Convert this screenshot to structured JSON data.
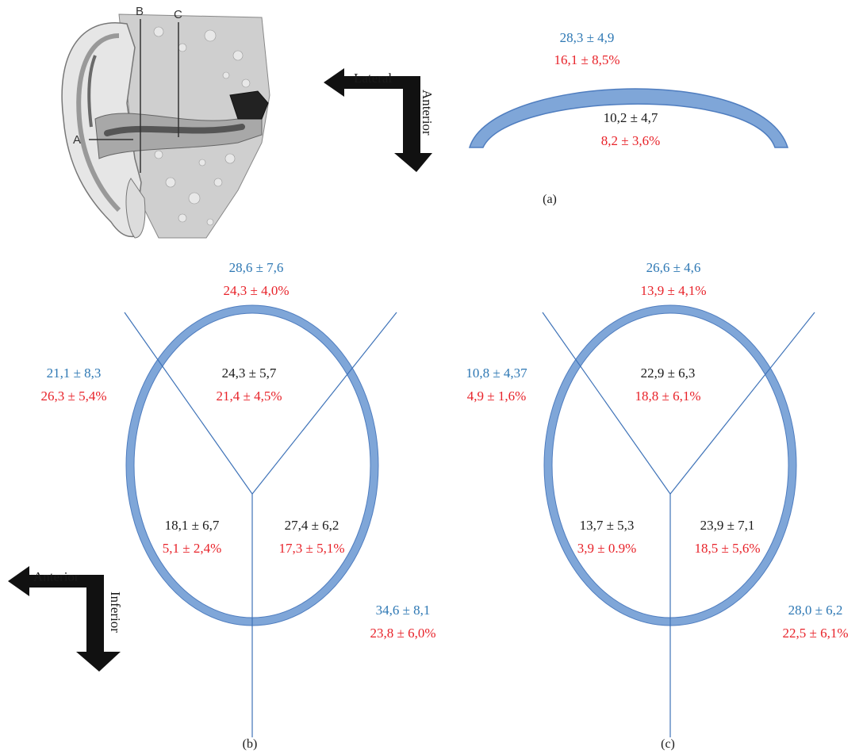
{
  "colors": {
    "ring_fill": "#7FA6D8",
    "ring_stroke": "#4F7DBF",
    "divider_line": "#3F73B8",
    "blue_text": "#2E78B4",
    "red_text": "#E8232A",
    "black_text": "#1a1a1a",
    "arrow": "#111111"
  },
  "ear_illustration": {
    "label_a": "A",
    "label_b": "B",
    "label_c": "C"
  },
  "orientation_top": {
    "horizontal": "Lateral",
    "vertical": "Anterior"
  },
  "orientation_bottom": {
    "horizontal": "Anterior",
    "vertical": "Inferior"
  },
  "panel_a": {
    "caption": "(a)",
    "outer_blue": "28,3 ± 4,9",
    "outer_red": "16,1 ± 8,5%",
    "inner_black": "10,2 ± 4,7",
    "inner_red": "8,2 ± 3,6%"
  },
  "panel_b": {
    "caption": "(b)",
    "top_blue": "28,6 ± 7,6",
    "top_red": "24,3 ± 4,0%",
    "left_blue": "21,1 ± 8,3",
    "left_red": "26,3 ± 5,4%",
    "right_blue": "34,6 ± 8,1",
    "right_red": "23,8 ± 6,0%",
    "upper_black": "24,3 ± 5,7",
    "upper_red": "21,4 ± 4,5%",
    "lowleft_black": "18,1 ± 6,7",
    "lowleft_red": "5,1 ± 2,4%",
    "lowright_black": "27,4 ± 6,2",
    "lowright_red": "17,3 ± 5,1%"
  },
  "panel_c": {
    "caption": "(c)",
    "top_blue": "26,6 ± 4,6",
    "top_red": "13,9 ± 4,1%",
    "left_blue": "10,8 ± 4,37",
    "left_red": "4,9 ± 1,6%",
    "right_blue": "28,0 ± 6,2",
    "right_red": "22,5 ± 6,1%",
    "upper_black": "22,9 ± 6,3",
    "upper_red": "18,8 ± 6,1%",
    "lowleft_black": "13,7 ± 5,3",
    "lowleft_red": "3,9 ± 0.9%",
    "lowright_black": "23,9 ± 7,1",
    "lowright_red": "18,5 ± 5,6%"
  }
}
